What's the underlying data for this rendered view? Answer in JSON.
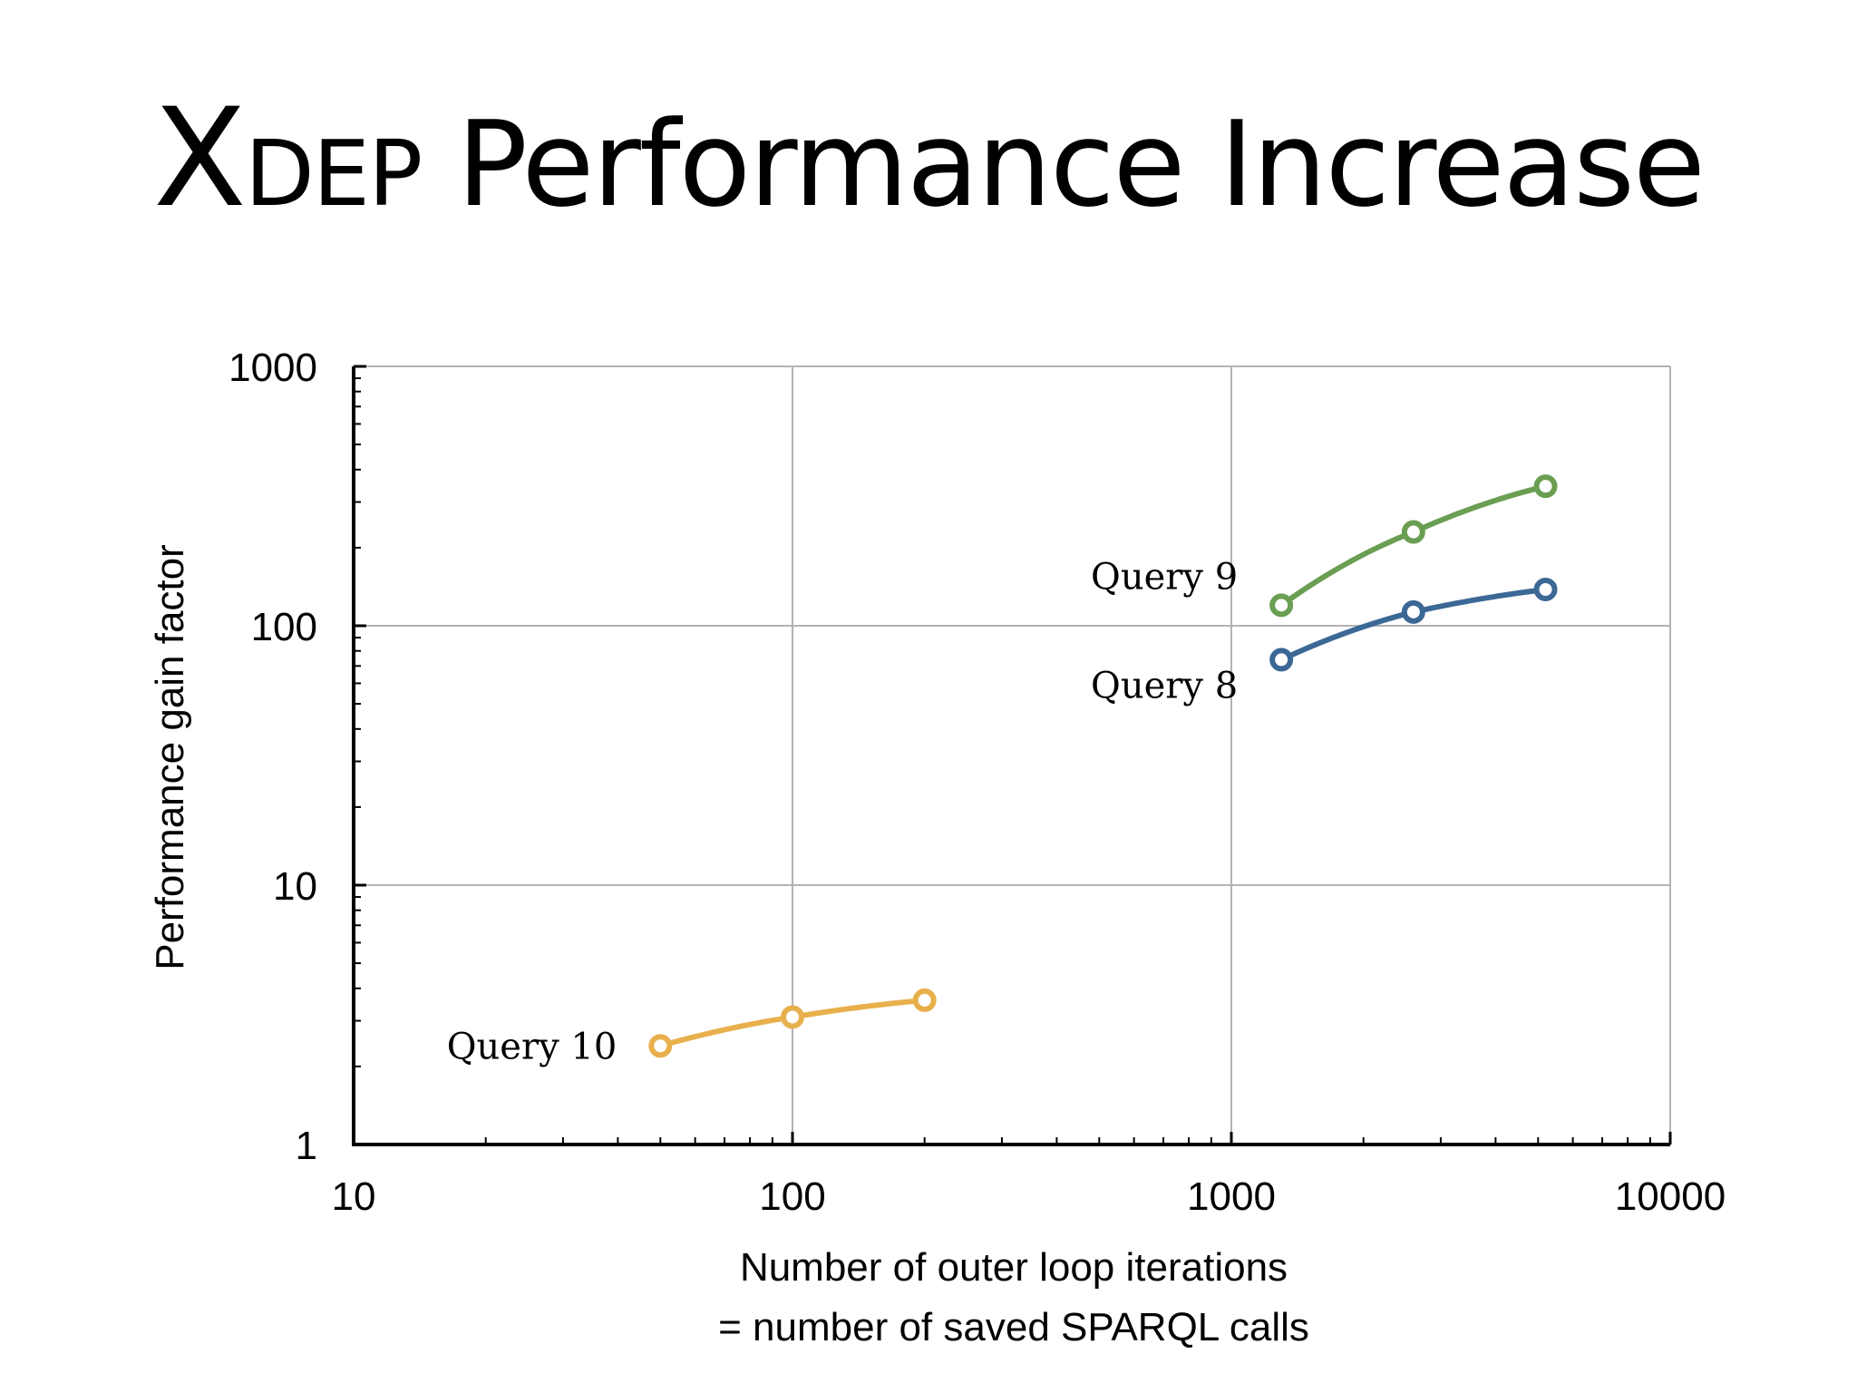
{
  "slide": {
    "title_cap": "X",
    "title_smallcaps": "DEP",
    "title_rest": " Performance Increase"
  },
  "chart_data": {
    "type": "line",
    "x_scale": "log",
    "y_scale": "log",
    "xlim": [
      10,
      10000
    ],
    "ylim": [
      1,
      1000
    ],
    "x_ticks": [
      "10",
      "100",
      "1000",
      "10000"
    ],
    "y_ticks": [
      "1",
      "10",
      "100",
      "1000"
    ],
    "xlabel_line1": "Number of outer loop iterations",
    "xlabel_line2": "=  number of saved SPARQL calls",
    "ylabel": "Performance gain factor",
    "grid": true,
    "series": [
      {
        "name": "Query 9",
        "color": "#6a9e52",
        "x": [
          1300,
          2600,
          5200
        ],
        "y": [
          120,
          230,
          345
        ]
      },
      {
        "name": "Query 8",
        "color": "#3c6895",
        "x": [
          1300,
          2600,
          5200
        ],
        "y": [
          74,
          113,
          138
        ]
      },
      {
        "name": "Query 10",
        "color": "#e8b04c",
        "x": [
          50,
          100,
          200
        ],
        "y": [
          2.4,
          3.1,
          3.6
        ]
      }
    ]
  }
}
